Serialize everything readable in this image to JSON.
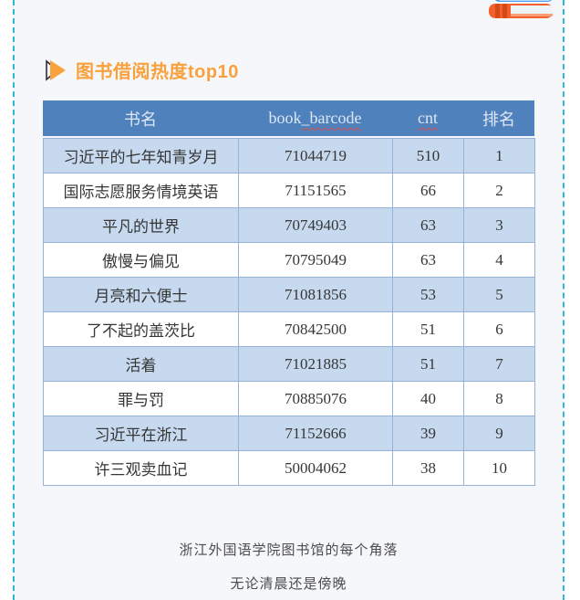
{
  "page": {
    "background_color": "#f5f7fa",
    "dashed_border_color": "#30b8d9"
  },
  "header": {
    "title": "图书借阅热度top10",
    "title_color": "#f9a13c",
    "marker_icon": "triangle-arrow-icon",
    "corner_icon": "books-stack-icon"
  },
  "table": {
    "headers": [
      "书名",
      "book_barcode",
      "cnt",
      "排名"
    ],
    "header_barcode": {
      "plain": "book",
      "flagged": "_barcode"
    },
    "header_bg_color": "#4f81bd",
    "shaded_row_color": "#c6d9ee",
    "border_color": "#95b3d7",
    "rows": [
      {
        "book_name": "习近平的七年知青岁月",
        "book_barcode": "71044719",
        "cnt": "510",
        "rank": "1"
      },
      {
        "book_name": "国际志愿服务情境英语",
        "book_barcode": "71151565",
        "cnt": "66",
        "rank": "2"
      },
      {
        "book_name": "平凡的世界",
        "book_barcode": "70749403",
        "cnt": "63",
        "rank": "3"
      },
      {
        "book_name": "傲慢与偏见",
        "book_barcode": "70795049",
        "cnt": "63",
        "rank": "4"
      },
      {
        "book_name": "月亮和六便士",
        "book_barcode": "71081856",
        "cnt": "53",
        "rank": "5"
      },
      {
        "book_name": "了不起的盖茨比",
        "book_barcode": "70842500",
        "cnt": "51",
        "rank": "6"
      },
      {
        "book_name": "活着",
        "book_barcode": "71021885",
        "cnt": "51",
        "rank": "7"
      },
      {
        "book_name": "罪与罚",
        "book_barcode": "70885076",
        "cnt": "40",
        "rank": "8"
      },
      {
        "book_name": "习近平在浙江",
        "book_barcode": "71152666",
        "cnt": "39",
        "rank": "9"
      },
      {
        "book_name": "许三观卖血记",
        "book_barcode": "50004062",
        "cnt": "38",
        "rank": "10"
      }
    ]
  },
  "footer": {
    "line1": "浙江外国语学院图书馆的每个角落",
    "line2": "无论清晨还是傍晚"
  }
}
